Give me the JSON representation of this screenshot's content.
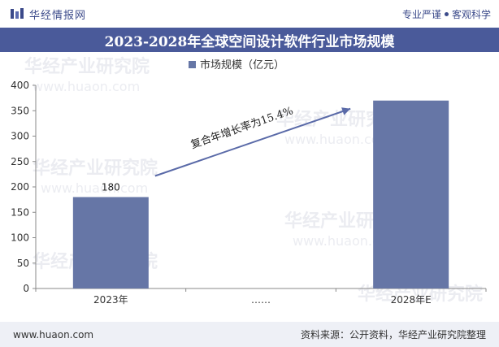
{
  "header": {
    "brand_name": "华经情报网",
    "slogan_left": "专业严谨",
    "slogan_right": "客观科学"
  },
  "title": "2023-2028年全球空间设计软件行业市场规模",
  "chart_data": {
    "type": "bar",
    "categories": [
      "2023年",
      "……",
      "2028年E"
    ],
    "series": [
      {
        "name": "市场规模（亿元）",
        "values": [
          180,
          null,
          370
        ]
      }
    ],
    "data_labels": [
      "180",
      "",
      ""
    ],
    "ylim": [
      0,
      400
    ],
    "yticks": [
      0,
      50,
      100,
      150,
      200,
      250,
      300,
      350,
      400
    ],
    "xlabel": "",
    "ylabel": "",
    "legend_position": "top-center",
    "grid": false,
    "bar_color": "#6676a6",
    "annotation": {
      "text": "复合年增长率为15.4%",
      "type": "arrow",
      "from_category": "2023年",
      "to_category": "2028年E"
    }
  },
  "watermark": {
    "text": "华经产业研究院",
    "url": "www.huaon.com"
  },
  "footer": {
    "url": "www.huaon.com",
    "source": "资料来源：公开资料，华经产业研究院整理"
  }
}
